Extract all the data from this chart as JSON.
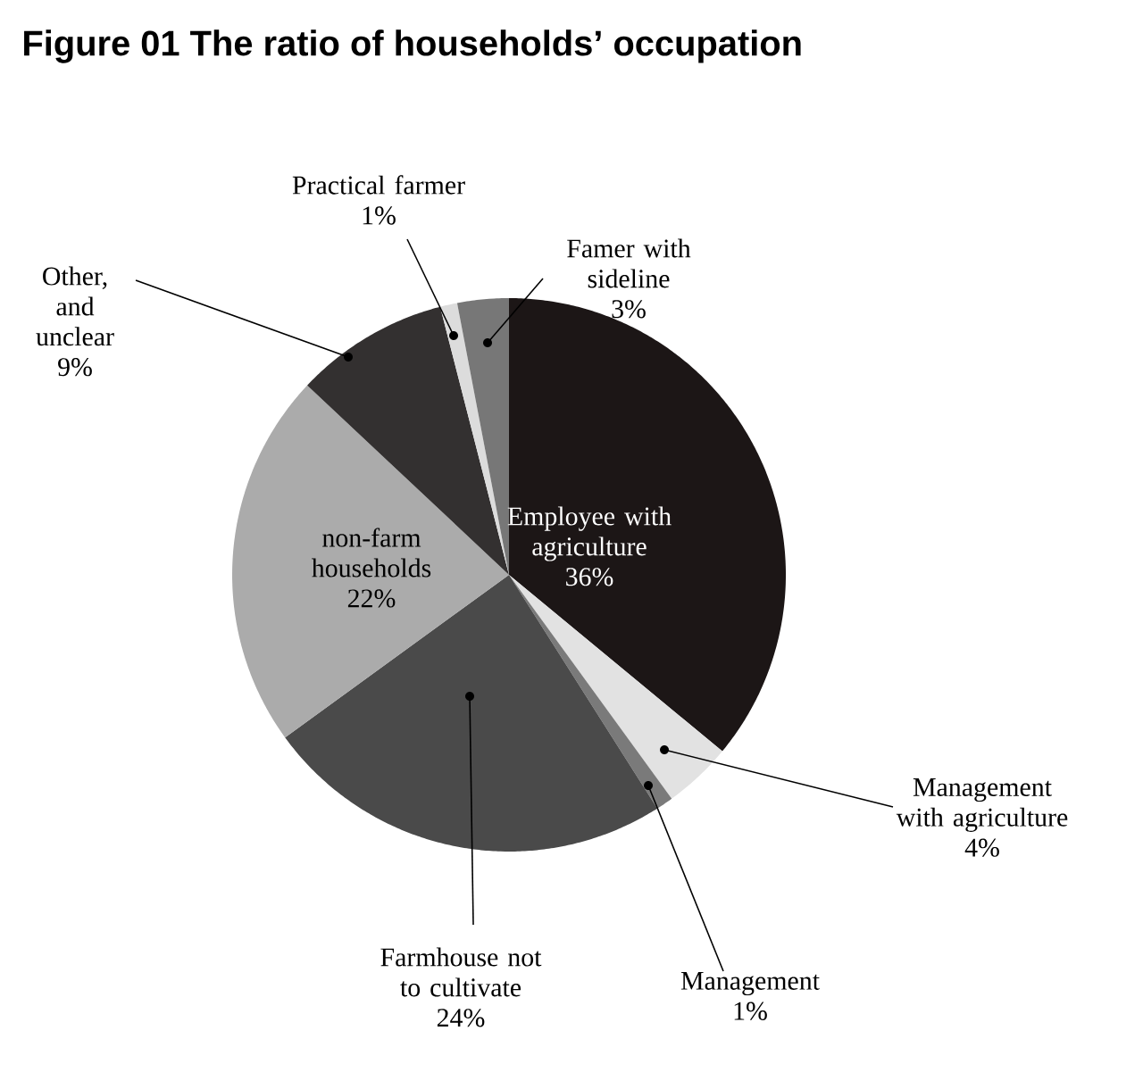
{
  "chart_data": {
    "type": "pie",
    "title": "Figure 01 The ratio of households’ occupation",
    "categories": [
      "Employee with agriculture",
      "Management with agriculture",
      "Management",
      "Farmhouse not to cultivate",
      "non-farm households",
      "Other, and unclear",
      "Practical farmer",
      "Famer with sideline"
    ],
    "values": [
      36,
      4,
      1,
      24,
      22,
      9,
      1,
      3
    ],
    "colors": [
      "#1c1616",
      "#e2e2e2",
      "#7a7a7a",
      "#4a4a4a",
      "#ababab",
      "#333030",
      "#dcdcdc",
      "#777777"
    ],
    "value_labels": [
      "36%",
      "4%",
      "1%",
      "24%",
      "22%",
      "9%",
      "1%",
      "3%"
    ]
  }
}
